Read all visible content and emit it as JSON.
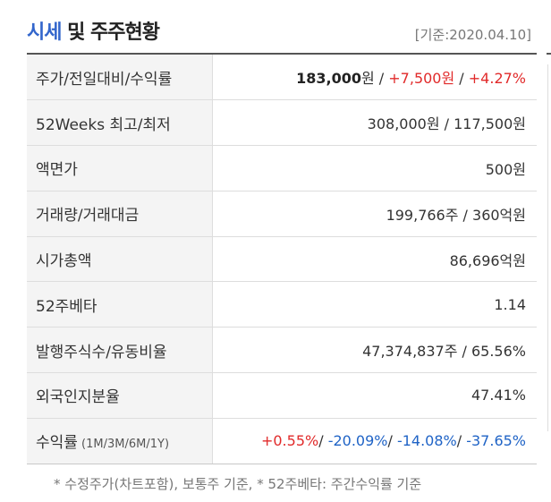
{
  "header": {
    "title_accent": "시세",
    "title_rest": " 및 주주현황",
    "base_date": "[기준:2020.04.10]"
  },
  "rows": {
    "price": {
      "label": "주가/전일대비/수익률",
      "price": "183,000",
      "price_unit": "원",
      "sep1": " / ",
      "change": "+7,500원",
      "sep2": " / ",
      "rate": "+4.27%"
    },
    "week52": {
      "label": "52Weeks 최고/최저",
      "value": "308,000원 / 117,500원"
    },
    "par": {
      "label": "액면가",
      "value": "500원"
    },
    "volume": {
      "label": "거래량/거래대금",
      "value": "199,766주 / 360억원"
    },
    "market_cap": {
      "label": "시가총액",
      "value": "86,696억원"
    },
    "beta": {
      "label": "52주베타",
      "value": "1.14"
    },
    "shares": {
      "label": "발행주식수/유동비율",
      "value": "47,374,837주 / 65.56%"
    },
    "foreign": {
      "label": "외국인지분율",
      "value": "47.41%"
    },
    "returns": {
      "label": "수익률",
      "label_periods": " (1M/3M/6M/1Y)",
      "r1m": "+0.55%",
      "r3m": "-20.09%",
      "r6m": "-14.08%",
      "r1y": "-37.65%",
      "slash": "/ "
    }
  },
  "footnote": "* 수정주가(차트포함), 보통주 기준, * 52주베타: 주간수익률 기준",
  "colors": {
    "up": "#e12a2a",
    "down": "#1f63c6",
    "accent": "#3366cc",
    "label_bg": "#f4f4f4"
  }
}
